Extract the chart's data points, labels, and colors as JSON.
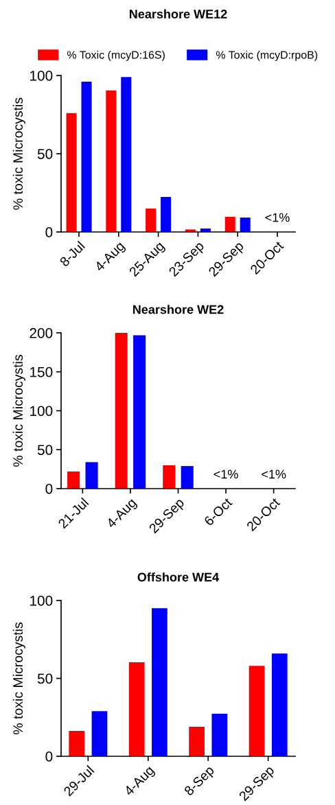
{
  "chart_data": [
    {
      "type": "bar",
      "title": "Nearshore WE12",
      "ylabel": "% toxic Microcystis",
      "categories": [
        "8-Jul",
        "4-Aug",
        "25-Aug",
        "23-Sep",
        "29-Sep",
        "20-Oct"
      ],
      "series": [
        {
          "name": "% Toxic (mcyD:16S)",
          "color": "#ff0000",
          "values": [
            76,
            90.5,
            15,
            1.6,
            9.7,
            null
          ]
        },
        {
          "name": "% Toxic (mcyD:rpoB)",
          "color": "#0000ff",
          "values": [
            96,
            99,
            22.4,
            2.2,
            9.2,
            null
          ]
        }
      ],
      "ylim": [
        0,
        100
      ],
      "yticks": [
        0,
        50,
        100
      ],
      "legend": "top",
      "grid": false,
      "annotations": [
        "<1%"
      ]
    },
    {
      "type": "bar",
      "title": "Nearshore WE2",
      "ylabel": "% toxic Microcystis",
      "categories": [
        "21-Jul",
        "4-Aug",
        "29-Sep",
        "6-Oct",
        "20-Oct"
      ],
      "series": [
        {
          "color": "#ff0000",
          "values": [
            22,
            200,
            30,
            null,
            null
          ]
        },
        {
          "color": "#0000ff",
          "values": [
            34,
            197,
            29,
            null,
            null
          ]
        }
      ],
      "ylim": [
        0,
        200
      ],
      "yticks": [
        0,
        50,
        100,
        150,
        200
      ],
      "grid": false,
      "annotations": [
        "<1%",
        "<1%"
      ]
    },
    {
      "type": "bar",
      "title": "Offshore WE4",
      "ylabel": "% toxic Microcystis",
      "categories": [
        "29-Jul",
        "4-Aug",
        "8-Sep",
        "29-Sep"
      ],
      "series": [
        {
          "color": "#ff0000",
          "values": [
            16.3,
            60.3,
            18.9,
            58
          ]
        },
        {
          "color": "#0000ff",
          "values": [
            29,
            95,
            27.3,
            66
          ]
        }
      ],
      "ylim": [
        0,
        100
      ],
      "yticks": [
        0,
        50,
        100
      ],
      "grid": false
    }
  ]
}
